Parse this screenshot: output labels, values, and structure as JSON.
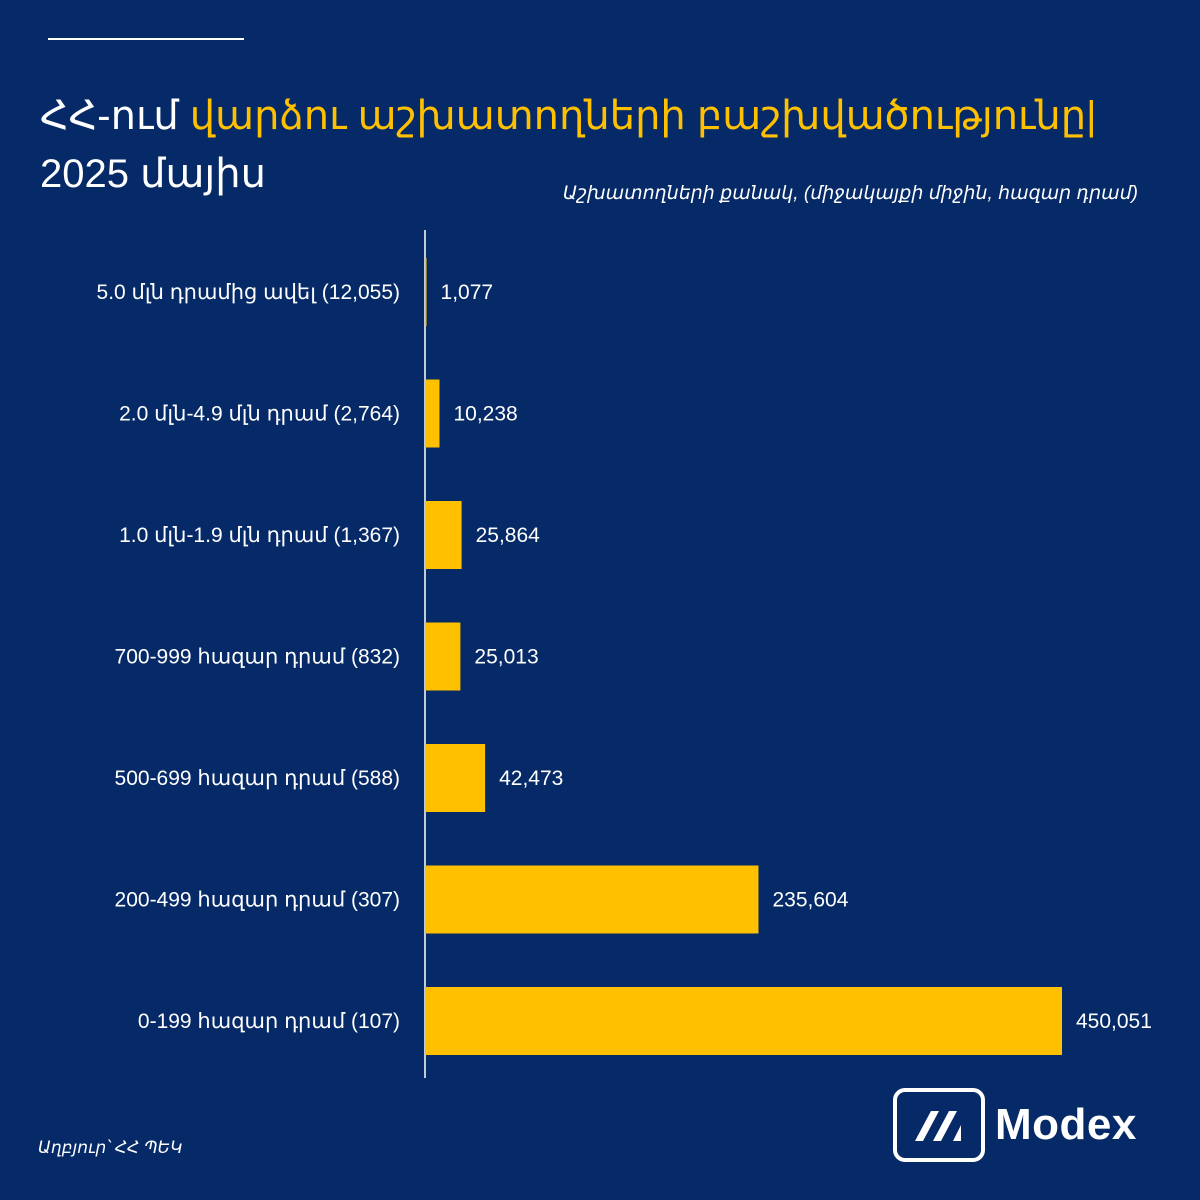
{
  "title": {
    "prefix": "ՀՀ-ում",
    "highlight": "վարձու աշխատողների բաշխվածությունը|",
    "line2": "2025 մայիս"
  },
  "colors": {
    "background": "#062a67",
    "bar": "#ffc000",
    "text": "#ffffff"
  },
  "chart_data": {
    "type": "bar",
    "orientation": "horizontal",
    "subtitle": "Աշխատողների քանակ, (միջակայքի միջին, հազար դրամ)",
    "categories": [
      "5.0 մլն դրամից ավել (12,055)",
      "2.0 մլն-4.9 մլն դրամ (2,764)",
      "1.0 մլն-1.9 մլն դրամ  (1,367)",
      "700-999 հազար դրամ  (832)",
      "500-699 հազար դրամ  (588)",
      "200-499 հազար դրամ  (307)",
      "0-199 հազար դրամ  (107)"
    ],
    "values": [
      1077,
      10238,
      25864,
      25013,
      42473,
      235604,
      450051
    ],
    "value_labels": [
      "1,077",
      "10,238",
      "25,864",
      "25,013",
      "42,473",
      "235,604",
      "450,051"
    ],
    "xlim": [
      0,
      450051
    ],
    "grid": false,
    "legend": "none"
  },
  "source": "Աղբյուր՝ ՀՀ ՊԵԿ",
  "logo": {
    "text": "Modex",
    "icon": "modex-logo-icon"
  }
}
